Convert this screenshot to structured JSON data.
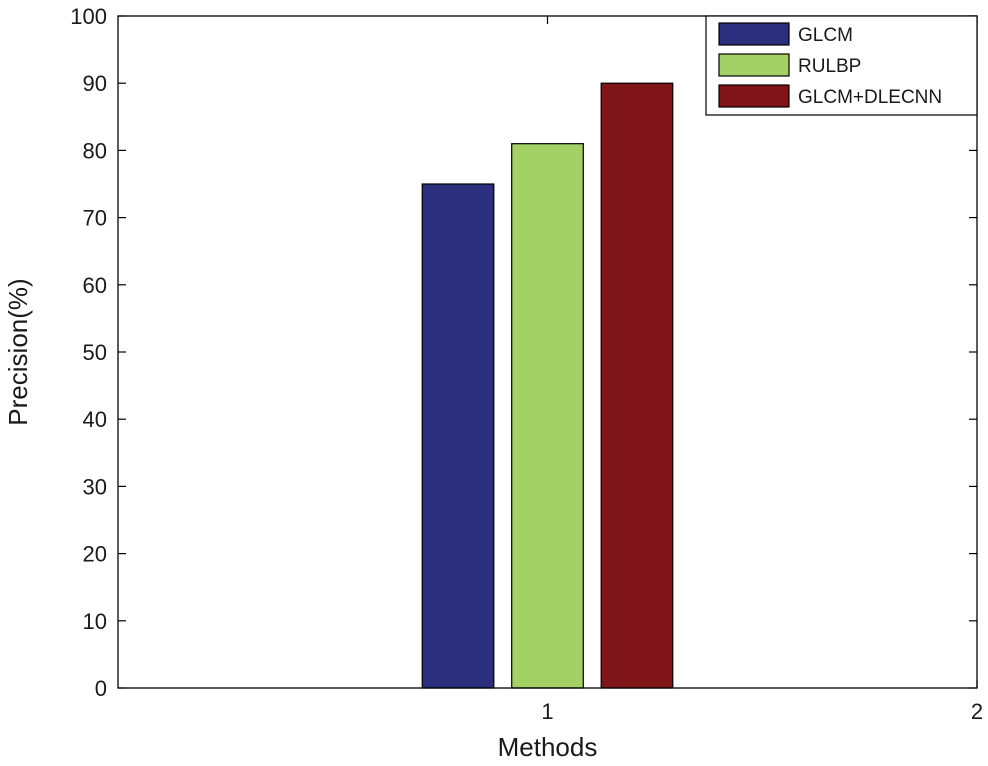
{
  "chart_data": {
    "type": "bar",
    "title": "",
    "xlabel": "Methods",
    "ylabel": "Precision(%)",
    "xlim": [
      0,
      2
    ],
    "ylim": [
      0,
      100
    ],
    "xticks": [
      "1",
      "2"
    ],
    "yticks": [
      "0",
      "10",
      "20",
      "30",
      "40",
      "50",
      "60",
      "70",
      "80",
      "90",
      "100"
    ],
    "categories": [
      "1"
    ],
    "series": [
      {
        "name": "GLCM",
        "values": [
          75
        ],
        "color": "#2b2f7e"
      },
      {
        "name": "RULBP",
        "values": [
          81
        ],
        "color": "#a3d166"
      },
      {
        "name": "GLCM+DLECNN",
        "values": [
          90
        ],
        "color": "#7f1519"
      }
    ],
    "legend_position": "top-right",
    "grid": false
  }
}
